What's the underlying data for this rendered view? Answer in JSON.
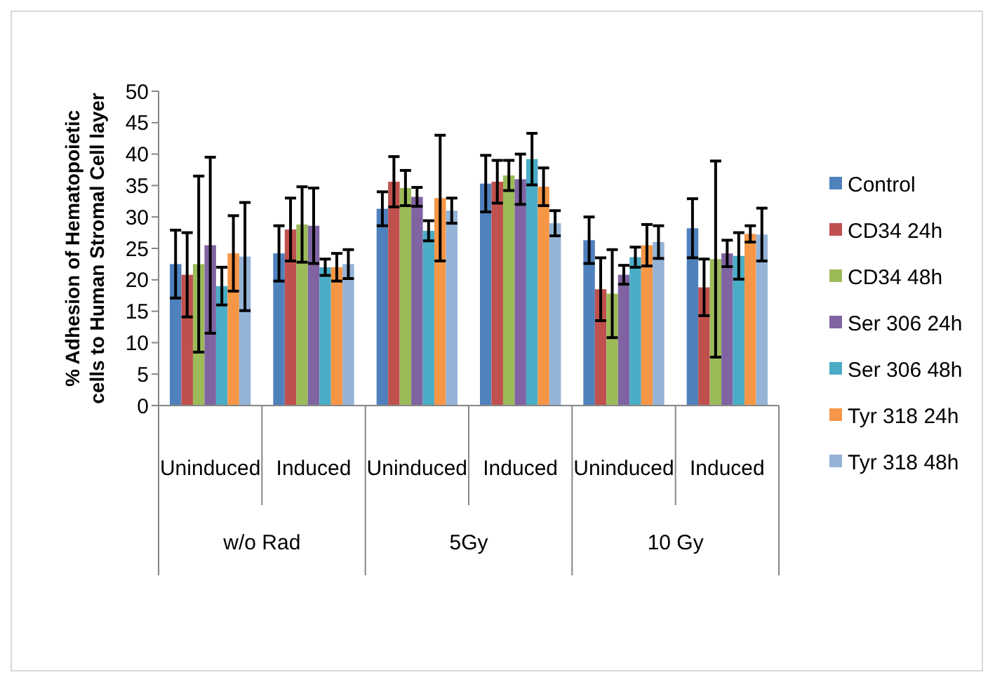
{
  "chart_data": {
    "type": "bar",
    "ylabel": "% Adhesion of Hematopoietic cells to Human Stromal Cell layer",
    "categories": [
      "Uninduced",
      "Induced",
      "Uninduced",
      "Induced",
      "Uninduced",
      "Induced"
    ],
    "annotations": [
      "w/o Rad",
      "5Gy",
      "10 Gy"
    ],
    "ylim": [
      0,
      50
    ],
    "yticks": [
      0,
      5,
      10,
      15,
      20,
      25,
      30,
      35,
      40,
      45,
      50
    ],
    "legend": "right",
    "grid": false,
    "series": [
      {
        "name": "Control",
        "color": "#4f81bd",
        "values": [
          22.5,
          24.2,
          31.3,
          35.3,
          26.3,
          28.2
        ],
        "errors": [
          5.4,
          4.4,
          2.7,
          4.5,
          3.7,
          4.7
        ]
      },
      {
        "name": "CD34 24h",
        "color": "#c0504d",
        "values": [
          20.8,
          28,
          35.6,
          35.6,
          18.5,
          18.8
        ],
        "errors": [
          6.7,
          5,
          4,
          3.4,
          5,
          4.5
        ]
      },
      {
        "name": "CD34 48h",
        "color": "#9bbb59",
        "values": [
          22.5,
          28.8,
          34.6,
          36.6,
          17.8,
          23.3
        ],
        "errors": [
          14,
          6,
          2.8,
          2.4,
          7,
          15.6
        ]
      },
      {
        "name": "Ser 306 24h",
        "color": "#8064a2",
        "values": [
          25.5,
          28.6,
          33.2,
          36,
          20.8,
          24.2
        ],
        "errors": [
          14,
          6,
          1.5,
          4,
          1.5,
          2.1
        ]
      },
      {
        "name": "Ser 306 48h",
        "color": "#4bacc6",
        "values": [
          19,
          22,
          27.8,
          39.2,
          23.6,
          23.8
        ],
        "errors": [
          3,
          1.3,
          1.6,
          4.1,
          1.6,
          3.7
        ]
      },
      {
        "name": "Tyr 318 24h",
        "color": "#f79646",
        "values": [
          24.2,
          22,
          33,
          34.8,
          25.5,
          27.3
        ],
        "errors": [
          6,
          2.2,
          10,
          3,
          3.3,
          1.3
        ]
      },
      {
        "name": "Tyr 318 48h",
        "color": "#95b3d7",
        "values": [
          23.7,
          22.5,
          31,
          29,
          26,
          27.2
        ],
        "errors": [
          8.6,
          2.3,
          2,
          2,
          2.6,
          4.2
        ]
      }
    ]
  }
}
